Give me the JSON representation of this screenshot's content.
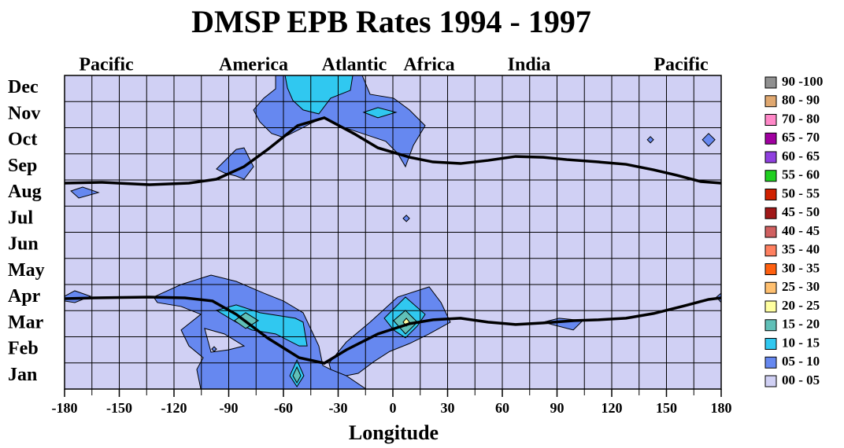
{
  "chart_data": {
    "type": "contour",
    "title": "DMSP  EPB Rates  1994 - 1997",
    "x_label": "Longitude",
    "regions": [
      "Pacific",
      "America",
      "Atlantic",
      "Africa",
      "India",
      "Pacific"
    ],
    "categories": [
      "Jan",
      "Feb",
      "Mar",
      "Apr",
      "May",
      "Jun",
      "Jul",
      "Aug",
      "Sep",
      "Oct",
      "Nov",
      "Dec"
    ],
    "xlim": [
      -180,
      180
    ],
    "xticks": [
      -180,
      -150,
      -120,
      -90,
      -60,
      -30,
      0,
      30,
      60,
      90,
      120,
      150,
      180
    ],
    "xgrid": [
      -180,
      -165,
      -150,
      -135,
      -120,
      -105,
      -90,
      -75,
      -60,
      -45,
      -30,
      -15,
      0,
      15,
      30,
      45,
      60,
      75,
      90,
      105,
      120,
      135,
      150,
      165,
      180
    ],
    "ylim": [
      0.5,
      12.5
    ],
    "grid": true,
    "legend": [
      {
        "label": "90 -100",
        "color": "#909090"
      },
      {
        "label": "80 - 90",
        "color": "#e0a870"
      },
      {
        "label": "70 - 80",
        "color": "#ff88c8"
      },
      {
        "label": "65 - 70",
        "color": "#a000a0"
      },
      {
        "label": "60 - 65",
        "color": "#9040e0"
      },
      {
        "label": "55 - 60",
        "color": "#20d020"
      },
      {
        "label": "50 - 55",
        "color": "#d02000"
      },
      {
        "label": "45 - 50",
        "color": "#a01818"
      },
      {
        "label": "40 - 45",
        "color": "#d06060"
      },
      {
        "label": "35 - 40",
        "color": "#ff8060"
      },
      {
        "label": "30 - 35",
        "color": "#ff6010"
      },
      {
        "label": "25 - 30",
        "color": "#ffc070"
      },
      {
        "label": "20 - 25",
        "color": "#ffffa0"
      },
      {
        "label": "15 - 20",
        "color": "#60c0b8"
      },
      {
        "label": "10 - 15",
        "color": "#30c8f0"
      },
      {
        "label": "05 - 10",
        "color": "#6688f0"
      },
      {
        "label": "00 - 05",
        "color": "#d0d0f4"
      }
    ],
    "contours": [
      {
        "color": "#6688f0",
        "points": [
          [
            -64.3,
            12.5
          ],
          [
            -16.8,
            12.5
          ],
          [
            -12.5,
            11.78
          ],
          [
            0.4,
            11.63
          ],
          [
            9.1,
            11.18
          ],
          [
            17.7,
            10.58
          ],
          [
            11.2,
            9.82
          ],
          [
            6.9,
            9.01
          ],
          [
            2.6,
            9.52
          ],
          [
            -3.9,
            9.98
          ],
          [
            -16.8,
            10.28
          ],
          [
            -29.8,
            10.58
          ],
          [
            -37.5,
            10.88
          ],
          [
            -44.9,
            10.67
          ],
          [
            -51.4,
            10.43
          ],
          [
            -60.0,
            10.13
          ],
          [
            -66.5,
            10.28
          ],
          [
            -73.0,
            10.73
          ],
          [
            -76.4,
            11.18
          ],
          [
            -70.8,
            11.63
          ],
          [
            -64.3,
            11.99
          ]
        ]
      },
      {
        "color": "#30c8f0",
        "points": [
          [
            -59.1,
            12.5
          ],
          [
            -22.0,
            12.5
          ],
          [
            -23.3,
            11.93
          ],
          [
            -34.1,
            11.63
          ],
          [
            -40.6,
            11.03
          ],
          [
            -49.2,
            11.18
          ],
          [
            -54.8,
            11.54
          ],
          [
            -57.8,
            12.02
          ]
        ]
      },
      {
        "color": "#30c8f0",
        "points": [
          [
            -16.0,
            11.09
          ],
          [
            -8.2,
            11.27
          ],
          [
            1.7,
            11.09
          ],
          [
            -8.2,
            10.88
          ]
        ]
      },
      {
        "color": "#6688f0",
        "points": [
          [
            -96.7,
            8.92
          ],
          [
            -85.9,
            9.67
          ],
          [
            -81.6,
            9.73
          ],
          [
            -76.4,
            9.01
          ],
          [
            -81.6,
            8.53
          ],
          [
            -85.9,
            8.65
          ],
          [
            -92.4,
            8.77
          ]
        ]
      },
      {
        "color": "#6688f0",
        "points": [
          [
            -176.5,
            8.08
          ],
          [
            -170.1,
            8.23
          ],
          [
            -161.4,
            8.02
          ],
          [
            -172.2,
            7.81
          ]
        ]
      },
      {
        "color": "#6688f0",
        "points": [
          [
            139.5,
            10.04
          ],
          [
            141.2,
            10.16
          ],
          [
            142.9,
            10.04
          ],
          [
            141.2,
            9.92
          ]
        ]
      },
      {
        "color": "#6688f0",
        "points": [
          [
            169.7,
            10.04
          ],
          [
            173.1,
            10.28
          ],
          [
            176.6,
            10.04
          ],
          [
            173.1,
            9.79
          ]
        ]
      },
      {
        "color": "#6688f0",
        "points": [
          [
            5.6,
            7.03
          ],
          [
            7.4,
            7.15
          ],
          [
            9.1,
            7.03
          ],
          [
            7.4,
            6.91
          ]
        ]
      },
      {
        "color": "#6688f0",
        "points": [
          [
            -180,
            4.05
          ],
          [
            -174.4,
            4.26
          ],
          [
            -165.8,
            4.05
          ],
          [
            -174.4,
            3.81
          ],
          [
            -180,
            3.87
          ]
        ]
      },
      {
        "color": "#6688f0",
        "points": [
          [
            177.4,
            4.02
          ],
          [
            180,
            4.17
          ],
          [
            180,
            3.81
          ]
        ]
      },
      {
        "color": "#6688f0",
        "points": [
          [
            -131.2,
            4.02
          ],
          [
            -116.1,
            4.5
          ],
          [
            -99.7,
            4.86
          ],
          [
            -85.9,
            4.62
          ],
          [
            -70.8,
            4.17
          ],
          [
            -60.0,
            3.87
          ],
          [
            -49.2,
            3.42
          ],
          [
            -40.6,
            2.15
          ],
          [
            -38.4,
            1.4
          ],
          [
            -34.1,
            1.25
          ],
          [
            -25.5,
            1.01
          ],
          [
            -14.7,
            0.5
          ],
          [
            -105.3,
            0.5
          ],
          [
            -107.5,
            1.25
          ],
          [
            -104.0,
            1.7
          ],
          [
            -111.8,
            2.15
          ],
          [
            -116.1,
            2.76
          ],
          [
            -105.3,
            3.36
          ],
          [
            -116.1,
            3.66
          ],
          [
            -129.1,
            3.81
          ]
        ]
      },
      {
        "color": "#6688f0",
        "points": [
          [
            -35.0,
            1.49
          ],
          [
            -25.5,
            2.3
          ],
          [
            -12.5,
            3.06
          ],
          [
            2.6,
            4.02
          ],
          [
            19.9,
            4.41
          ],
          [
            26.4,
            3.81
          ],
          [
            31.5,
            3.06
          ],
          [
            19.9,
            2.61
          ],
          [
            9.1,
            2.24
          ],
          [
            -1.7,
            1.94
          ],
          [
            -10.4,
            1.55
          ],
          [
            -19.0,
            1.1
          ],
          [
            -25.5,
            1.01
          ],
          [
            -34.1,
            1.25
          ]
        ]
      },
      {
        "color": "#d0d0f4",
        "points": [
          [
            -103.2,
            2.82
          ],
          [
            -92.4,
            2.61
          ],
          [
            -81.6,
            2.15
          ],
          [
            -90.2,
            2.0
          ],
          [
            -99.7,
            1.91
          ]
        ]
      },
      {
        "color": "#6688f0",
        "points": [
          [
            -99.3,
            2.03
          ],
          [
            -98.0,
            2.12
          ],
          [
            -96.7,
            2.03
          ],
          [
            -98.0,
            1.94
          ]
        ]
      },
      {
        "color": "#30c8f0",
        "points": [
          [
            -96.7,
            3.51
          ],
          [
            -85.9,
            3.72
          ],
          [
            -72.9,
            3.42
          ],
          [
            -53.5,
            3.21
          ],
          [
            -49.2,
            3.06
          ],
          [
            -47.0,
            2.15
          ],
          [
            -51.4,
            2.15
          ],
          [
            -64.3,
            2.61
          ],
          [
            -77.3,
            2.76
          ],
          [
            -85.9,
            3.06
          ]
        ]
      },
      {
        "color": "#60c0b8",
        "points": [
          [
            -86.8,
            3.12
          ],
          [
            -80.7,
            3.42
          ],
          [
            -73.8,
            3.12
          ],
          [
            -80.7,
            2.82
          ]
        ]
      },
      {
        "color": "#30c8f0",
        "points": [
          [
            -56.5,
            1.01
          ],
          [
            -52.6,
            1.61
          ],
          [
            -48.8,
            1.01
          ],
          [
            -52.6,
            0.59
          ]
        ]
      },
      {
        "color": "#60c0b8",
        "points": [
          [
            -54.8,
            1.01
          ],
          [
            -52.6,
            1.34
          ],
          [
            -50.5,
            1.01
          ],
          [
            -52.6,
            0.74
          ]
        ]
      },
      {
        "color": "#30c8f0",
        "points": [
          [
            -4.7,
            3.21
          ],
          [
            6.9,
            4.02
          ],
          [
            17.7,
            3.36
          ],
          [
            13.4,
            2.91
          ],
          [
            6.9,
            2.46
          ],
          [
            0.4,
            2.76
          ]
        ]
      },
      {
        "color": "#60c0b8",
        "points": [
          [
            0.4,
            3.12
          ],
          [
            6.9,
            3.51
          ],
          [
            13.4,
            3.06
          ],
          [
            6.9,
            2.61
          ]
        ]
      },
      {
        "color": "#ffffa0",
        "points": [
          [
            5.6,
            3.06
          ],
          [
            7.4,
            3.21
          ],
          [
            9.1,
            3.06
          ],
          [
            7.4,
            2.91
          ]
        ]
      },
      {
        "color": "#6688f0",
        "points": [
          [
            82.5,
            3.06
          ],
          [
            91.1,
            3.21
          ],
          [
            104.1,
            3.12
          ],
          [
            98.9,
            2.76
          ],
          [
            88.9,
            2.94
          ]
        ]
      }
    ],
    "lines": [
      {
        "color": "#000000",
        "points": [
          [
            -180,
            8.38
          ],
          [
            -159.3,
            8.41
          ],
          [
            -133.4,
            8.32
          ],
          [
            -111.8,
            8.38
          ],
          [
            -96.7,
            8.53
          ],
          [
            -81.6,
            9.01
          ],
          [
            -68.6,
            9.67
          ],
          [
            -52.2,
            10.58
          ],
          [
            -37.6,
            10.88
          ],
          [
            -21.2,
            10.27
          ],
          [
            -8.2,
            9.73
          ],
          [
            9.1,
            9.37
          ],
          [
            22.0,
            9.19
          ],
          [
            37.1,
            9.13
          ],
          [
            52.2,
            9.25
          ],
          [
            67.3,
            9.4
          ],
          [
            82.5,
            9.37
          ],
          [
            95.4,
            9.28
          ],
          [
            112.7,
            9.19
          ],
          [
            127.8,
            9.1
          ],
          [
            142.9,
            8.89
          ],
          [
            155.8,
            8.68
          ],
          [
            168.8,
            8.44
          ],
          [
            180,
            8.38
          ]
        ]
      },
      {
        "color": "#000000",
        "points": [
          [
            -180,
            3.96
          ],
          [
            -163.6,
            3.99
          ],
          [
            -133.4,
            4.02
          ],
          [
            -114.0,
            3.99
          ],
          [
            -98.9,
            3.87
          ],
          [
            -85.9,
            3.36
          ],
          [
            -68.6,
            2.45
          ],
          [
            -51.4,
            1.7
          ],
          [
            -37.6,
            1.49
          ],
          [
            -25.5,
            2.0
          ],
          [
            -8.2,
            2.61
          ],
          [
            9.1,
            3.0
          ],
          [
            22.0,
            3.15
          ],
          [
            37.1,
            3.21
          ],
          [
            52.2,
            3.06
          ],
          [
            67.3,
            2.97
          ],
          [
            82.5,
            3.03
          ],
          [
            99.7,
            3.12
          ],
          [
            112.7,
            3.15
          ],
          [
            127.8,
            3.21
          ],
          [
            142.9,
            3.39
          ],
          [
            160.1,
            3.69
          ],
          [
            173.1,
            3.93
          ],
          [
            180,
            3.99
          ]
        ]
      }
    ]
  }
}
